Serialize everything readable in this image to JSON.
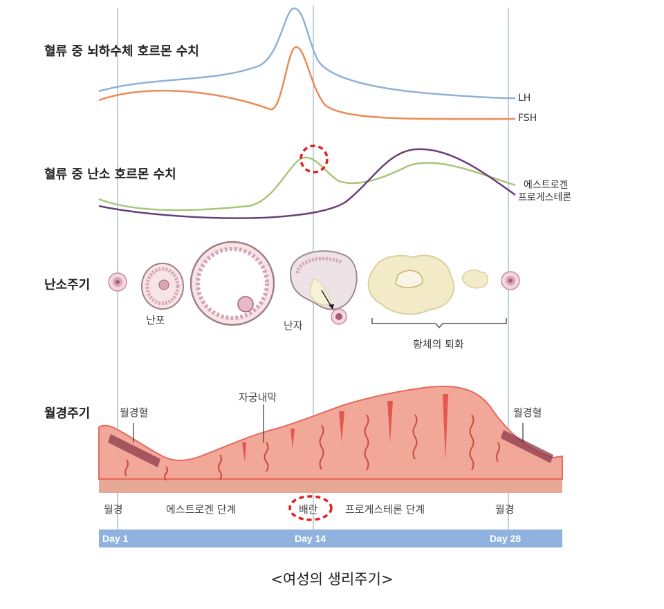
{
  "colors": {
    "lh": "#8fb1d6",
    "fsh": "#ec8a56",
    "estrogen": "#a8c57a",
    "progesterone": "#6b3d78",
    "day_bar": "#8fb3de",
    "highlight": "#e0201e",
    "endometrium": "#f2a898",
    "endometrium_dark": "#e8685c",
    "basal_layer": "#e8a896",
    "vessel": "#c84a3a",
    "follicle": "#d7a6b6",
    "corpus_luteum": "#f3ebc8"
  },
  "sections": {
    "pituitary": "혈류 중 뇌하수체 호르몬 수치",
    "ovarian_hormones": "혈류 중 난소 호르몬 수치",
    "ovarian_cycle": "난소주기",
    "menstrual_cycle": "월경주기"
  },
  "legend": {
    "lh": "LH",
    "fsh": "FSH",
    "estrogen": "에스트로겐",
    "progesterone": "프로게스테론"
  },
  "ovary_labels": {
    "follicle": "난포",
    "ovum": "난자",
    "corpus_luteum_regression": "황체의 퇴화"
  },
  "uterus_labels": {
    "menstrual_blood_left": "월경혈",
    "endometrium": "자궁내막",
    "menstrual_blood_right": "월경혈"
  },
  "phases": {
    "menses_left": "월경",
    "estrogen_phase": "에스트로겐 단계",
    "ovulation": "배란",
    "progesterone_phase": "프로게스테론 단계",
    "menses_right": "월경"
  },
  "days": {
    "day1": "Day 1",
    "day14": "Day 14",
    "day28": "Day 28"
  },
  "caption": "<여성의 생리주기>"
}
